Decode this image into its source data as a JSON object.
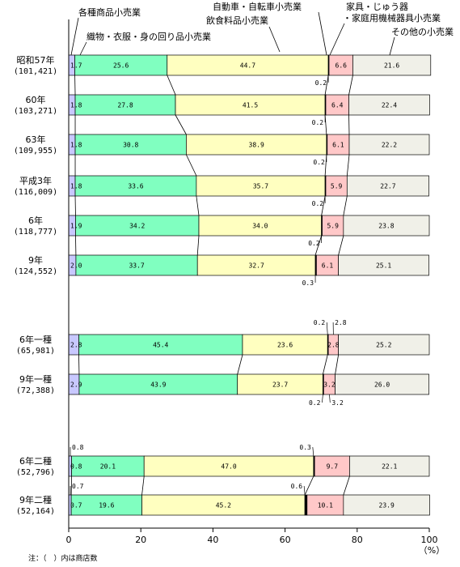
{
  "chart_data": {
    "type": "bar",
    "orientation": "horizontal",
    "stacked": true,
    "xlim": [
      0,
      100
    ],
    "xticks": [
      0,
      20,
      40,
      60,
      80,
      100
    ],
    "xunit": "（%）",
    "note": "注：（　）内は商店数",
    "legend_labels": [
      "各種商品小売業",
      "織物・衣服・身の回り品小売業",
      "飲食料品小売業",
      "自動車・自転車小売業",
      "家具・じゅう器",
      "・家庭用機械器具小売業",
      "その他の小売業"
    ],
    "colors": [
      "#c8c8ff",
      "#80ffc0",
      "#ffffc0",
      "#000000",
      "#ffc8c8",
      "#f0f0e8"
    ],
    "rows": [
      {
        "label": "昭和57年",
        "count": "(101,421)",
        "values": [
          1.7,
          25.6,
          44.7,
          0.2,
          6.6,
          21.6
        ],
        "labels": [
          "1.7",
          "25.6",
          "44.7",
          "0.2",
          "6.6",
          "21.6"
        ]
      },
      {
        "label": "60年",
        "count": "(103,271)",
        "values": [
          1.8,
          27.8,
          41.5,
          0.2,
          6.4,
          22.4
        ],
        "labels": [
          "1.8",
          "27.8",
          "41.5",
          "0.2",
          "6.4",
          "22.4"
        ]
      },
      {
        "label": "63年",
        "count": "(109,955)",
        "values": [
          1.8,
          30.8,
          38.9,
          0.2,
          6.1,
          22.2
        ],
        "labels": [
          "1.8",
          "30.8",
          "38.9",
          "0.2",
          "6.1",
          "22.2"
        ]
      },
      {
        "label": "平成3年",
        "count": "(116,009)",
        "values": [
          1.8,
          33.6,
          35.7,
          0.2,
          5.9,
          22.7
        ],
        "labels": [
          "1.8",
          "33.6",
          "35.7",
          "0.2",
          "5.9",
          "22.7"
        ]
      },
      {
        "label": "6年",
        "count": "(118,777)",
        "values": [
          1.9,
          34.2,
          34.0,
          0.2,
          5.9,
          23.8
        ],
        "labels": [
          "1.9",
          "34.2",
          "34.0",
          "0.2",
          "5.9",
          "23.8"
        ]
      },
      {
        "label": "9年",
        "count": "(124,552)",
        "values": [
          2.0,
          33.7,
          32.7,
          0.3,
          6.1,
          25.1
        ],
        "labels": [
          "2.0",
          "33.7",
          "32.7",
          "0.3",
          "6.1",
          "25.1"
        ]
      },
      {
        "label": "6年一種",
        "count": "(65,981)",
        "values": [
          2.8,
          45.4,
          23.6,
          0.2,
          2.8,
          25.2
        ],
        "labels": [
          "2.8",
          "45.4",
          "23.6",
          "0.2",
          "2.8",
          "25.2"
        ]
      },
      {
        "label": "9年一種",
        "count": "(72,388)",
        "values": [
          2.9,
          43.9,
          23.7,
          0.2,
          3.2,
          26.0
        ],
        "labels": [
          "2.9",
          "43.9",
          "23.7",
          "0.2",
          "3.2",
          "26.0"
        ]
      },
      {
        "label": "6年二種",
        "count": "(52,796)",
        "values": [
          0.8,
          20.1,
          47.0,
          0.3,
          9.7,
          22.1
        ],
        "labels": [
          "0.8",
          "20.1",
          "47.0",
          "0.3",
          "9.7",
          "22.1"
        ]
      },
      {
        "label": "9年二種",
        "count": "(52,164)",
        "values": [
          0.7,
          19.6,
          45.2,
          0.6,
          10.1,
          23.9
        ],
        "labels": [
          "0.7",
          "19.6",
          "45.2",
          "0.6",
          "10.1",
          "23.9"
        ]
      }
    ]
  }
}
